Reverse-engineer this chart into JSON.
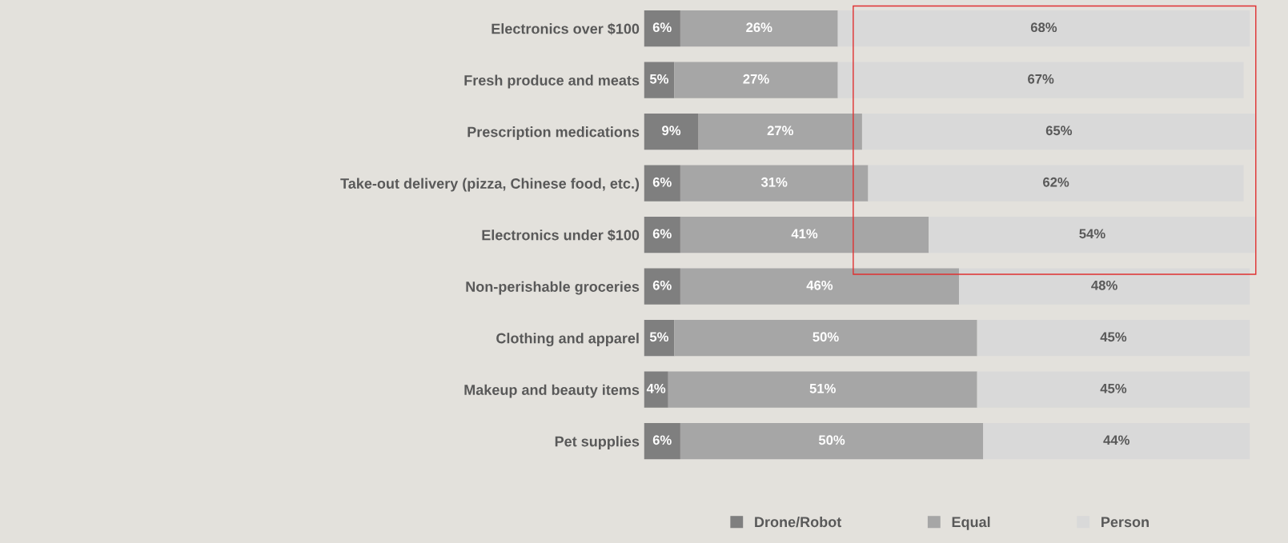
{
  "chart_data": {
    "type": "bar",
    "orientation": "horizontal",
    "stacked": true,
    "legend": "bottom",
    "grid": false,
    "tick_labels": "y",
    "categories": [
      "Electronics over $100",
      "Fresh produce and meats",
      "Prescription medications",
      "Take-out delivery (pizza, Chinese food, etc.)",
      "Electronics under $100",
      "Non-perishable groceries",
      "Clothing and apparel",
      "Makeup and beauty items",
      "Pet supplies"
    ],
    "series": [
      {
        "name": "Drone/Robot",
        "color": "#7f7f7f",
        "values": [
          6,
          5,
          9,
          6,
          6,
          6,
          5,
          4,
          6
        ],
        "value_labels": [
          "6%",
          "5%",
          "9%",
          "6%",
          "6%",
          "6%",
          "5%",
          "4%",
          "6%"
        ]
      },
      {
        "name": "Equal",
        "color": "#a6a6a6",
        "values": [
          26,
          27,
          27,
          31,
          41,
          46,
          50,
          51,
          50
        ],
        "value_labels": [
          "26%",
          "27%",
          "27%",
          "31%",
          "41%",
          "46%",
          "50%",
          "51%",
          "50%"
        ]
      },
      {
        "name": "Person",
        "color": "#d9d9d9",
        "values": [
          68,
          67,
          65,
          62,
          54,
          48,
          45,
          45,
          44
        ],
        "value_labels": [
          "68%",
          "67%",
          "65%",
          "62%",
          "54%",
          "48%",
          "45%",
          "45%",
          "44%"
        ]
      }
    ]
  }
}
